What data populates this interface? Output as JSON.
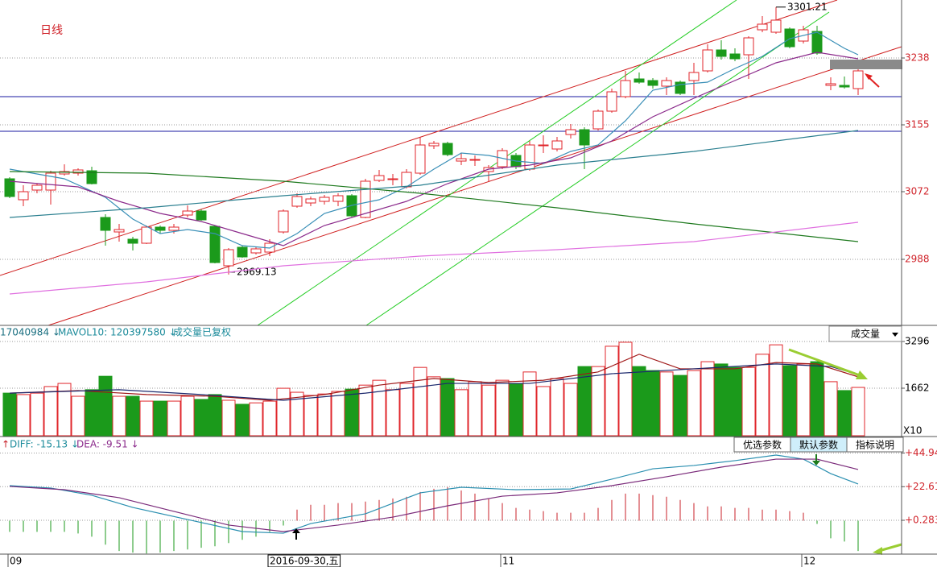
{
  "chart_data": [
    {
      "type": "candlestick",
      "title": "日线",
      "categories": [
        "09",
        null,
        null,
        null,
        null,
        null,
        null,
        null,
        null,
        null,
        null,
        null,
        null,
        null,
        null,
        null,
        null,
        null,
        null,
        "2016-09-30,五",
        null,
        null,
        null,
        null,
        null,
        null,
        null,
        null,
        null,
        null,
        null,
        null,
        null,
        null,
        null,
        null,
        "11",
        null,
        null,
        null,
        null,
        null,
        null,
        null,
        null,
        null,
        null,
        null,
        null,
        null,
        null,
        null,
        null,
        null,
        null,
        null,
        null,
        null,
        "12",
        null,
        null,
        null,
        null
      ],
      "open": [
        3088,
        3062,
        3074,
        3074,
        3094,
        3095,
        3098,
        3040,
        3022,
        3013,
        3008,
        3028,
        3024,
        3043,
        3048,
        3029,
        2980,
        3003,
        2996,
        2997,
        3022,
        3054,
        3058,
        3060,
        3060,
        3067,
        3040,
        3086,
        3088,
        3078,
        3095,
        3129,
        3132,
        3110,
        3112,
        3097,
        3103,
        3117,
        3100,
        3130,
        3125,
        3143,
        3149,
        3150,
        3172,
        3190,
        3212,
        3210,
        3203,
        3208,
        3210,
        3222,
        3248,
        3243,
        3242,
        3273,
        3270,
        3274,
        3259,
        3271,
        3204,
        3204,
        3200
      ],
      "high": [
        3090,
        3080,
        3082,
        3098,
        3106,
        3101,
        3103,
        3044,
        3032,
        3016,
        3030,
        3030,
        3032,
        3055,
        3050,
        3030,
        3002,
        3005,
        3004,
        3013,
        3050,
        3070,
        3066,
        3068,
        3070,
        3069,
        3088,
        3099,
        3094,
        3100,
        3140,
        3135,
        3134,
        3120,
        3117,
        3105,
        3126,
        3120,
        3135,
        3142,
        3140,
        3156,
        3152,
        3174,
        3200,
        3222,
        3220,
        3213,
        3214,
        3210,
        3232,
        3255,
        3260,
        3250,
        3265,
        3290,
        3301.21,
        3276,
        3278,
        3278,
        3214,
        3215,
        3225
      ],
      "low": [
        3064,
        3054,
        3070,
        3056,
        3092,
        3092,
        3081,
        3005,
        3010,
        2999,
        3007,
        3020,
        3020,
        3040,
        3036,
        2983,
        2969.13,
        2990,
        2994,
        2992,
        3020,
        3052,
        3054,
        3056,
        3054,
        3040,
        3039,
        3084,
        3080,
        3076,
        3093,
        3125,
        3116,
        3105,
        3104,
        3084,
        3100,
        3100,
        3098,
        3120,
        3122,
        3138,
        3100,
        3148,
        3170,
        3188,
        3206,
        3200,
        3192,
        3192,
        3192,
        3220,
        3236,
        3234,
        3212,
        3270,
        3268,
        3250,
        3256,
        3242,
        3198,
        3200,
        3192
      ],
      "close": [
        3066,
        3072,
        3080,
        3095,
        3097,
        3099,
        3082,
        3024,
        3025,
        3008,
        3028,
        3024,
        3028,
        3048,
        3037,
        2984,
        3000,
        2991,
        3001,
        3008,
        3048,
        3066,
        3063,
        3065,
        3067,
        3042,
        3085,
        3092,
        3088,
        3096,
        3130,
        3132,
        3118,
        3113,
        3112,
        3102,
        3123,
        3103,
        3130,
        3130,
        3135,
        3149,
        3130,
        3172,
        3196,
        3210,
        3208,
        3204,
        3210,
        3194,
        3220,
        3248,
        3240,
        3237,
        3263,
        3280,
        3285,
        3252,
        3273,
        3244,
        3206,
        3202,
        3222
      ],
      "up_color": "#e0262b",
      "down_color": "#1b9a1b",
      "ylim": [
        2906,
        3310
      ],
      "yticks": [
        2988,
        3072,
        3155,
        3238
      ],
      "grid": true,
      "lines": [
        {
          "color": "#3a8fb7",
          "x": [
            0,
            4,
            7,
            9,
            11,
            13,
            15,
            17,
            19,
            21,
            23,
            25,
            27,
            29,
            31,
            33,
            35,
            37,
            39,
            41,
            43,
            45,
            47,
            49,
            51,
            53,
            55,
            57,
            59,
            61,
            62
          ],
          "values": [
            3100,
            3088,
            3065,
            3038,
            3020,
            3025,
            3020,
            3005,
            3002,
            3020,
            3045,
            3055,
            3062,
            3078,
            3100,
            3120,
            3117,
            3110,
            3107,
            3122,
            3130,
            3160,
            3198,
            3205,
            3208,
            3225,
            3240,
            3262,
            3270,
            3250,
            3242
          ]
        },
        {
          "color": "#8b2a8b",
          "x": [
            0,
            5,
            8,
            11,
            14,
            17,
            20,
            23,
            26,
            29,
            32,
            35,
            38,
            41,
            44,
            47,
            50,
            53,
            56,
            59,
            62
          ],
          "values": [
            3085,
            3078,
            3060,
            3045,
            3035,
            3020,
            3005,
            3030,
            3045,
            3060,
            3082,
            3100,
            3105,
            3114,
            3135,
            3165,
            3188,
            3210,
            3232,
            3245,
            3237
          ]
        },
        {
          "color": "#1f7a1f",
          "x": [
            0,
            10,
            20,
            30,
            40,
            50,
            62
          ],
          "values": [
            3097,
            3095,
            3085,
            3070,
            3052,
            3032,
            3010
          ]
        },
        {
          "color": "#2a7f8f",
          "x": [
            0,
            10,
            20,
            30,
            40,
            50,
            62
          ],
          "values": [
            3040,
            3052,
            3067,
            3080,
            3105,
            3122,
            3148
          ]
        },
        {
          "color": "#e070e0",
          "x": [
            0,
            10,
            20,
            30,
            40,
            50,
            62
          ],
          "values": [
            2945,
            2960,
            2980,
            2992,
            3000,
            3010,
            3034
          ]
        }
      ]
    },
    {
      "type": "bar",
      "header": [
        "17040984 ↓",
        "MAVOL10: 120397580 ↓",
        "成交量已复权"
      ],
      "selector": "成交量",
      "unit": "X10",
      "values": [
        1490,
        1440,
        1490,
        1720,
        1830,
        1380,
        1610,
        2080,
        1380,
        1380,
        1210,
        1210,
        1210,
        1380,
        1270,
        1440,
        1240,
        1100,
        1150,
        1210,
        1660,
        1520,
        1410,
        1460,
        1550,
        1630,
        1770,
        1940,
        1610,
        1830,
        2390,
        2060,
        2000,
        1610,
        1890,
        1770,
        1940,
        1830,
        2230,
        1720,
        2000,
        1830,
        2420,
        2420,
        3130,
        3270,
        2420,
        2280,
        2230,
        2110,
        2280,
        2590,
        2510,
        2390,
        2390,
        2850,
        3180,
        2450,
        2510,
        2590,
        1890,
        1580,
        1690
      ],
      "ylim": [
        0,
        3409
      ],
      "yticks": [
        1662,
        3296
      ],
      "grid": true,
      "lines": [
        {
          "color": "#a01818",
          "x": [
            0,
            5,
            10,
            15,
            19,
            23,
            27,
            31,
            35,
            39,
            43,
            46,
            49,
            53,
            56,
            59,
            62
          ],
          "values": [
            1490,
            1580,
            1440,
            1380,
            1240,
            1440,
            1770,
            2000,
            1860,
            1940,
            2230,
            2850,
            2340,
            2340,
            2560,
            2510,
            2060
          ]
        },
        {
          "color": "#1d2a6e",
          "x": [
            0,
            8,
            14,
            20,
            26,
            32,
            38,
            44,
            50,
            56,
            60,
            62
          ],
          "values": [
            1490,
            1610,
            1440,
            1240,
            1490,
            1830,
            1830,
            2170,
            2340,
            2510,
            2420,
            2140
          ]
        }
      ]
    },
    {
      "type": "macd",
      "header": [
        "↑",
        "DIFF: -15.13 ↓",
        "DEA: -9.51 ↓"
      ],
      "buttons": [
        "优选参数",
        "默认参数",
        "指标说明"
      ],
      "values": [
        -7.4,
        -7.4,
        -7.4,
        -7.4,
        -7.4,
        -8.5,
        -10.6,
        -15.9,
        -20.1,
        -21.2,
        -21.8,
        -21.2,
        -20.1,
        -19.1,
        -18.0,
        -17.0,
        -14.8,
        -12.7,
        -10.6,
        -7.4,
        -3.2,
        7.4,
        10.6,
        10.6,
        11.7,
        11.7,
        12.7,
        13.8,
        14.8,
        15.9,
        19.1,
        21.2,
        22.3,
        20.1,
        18.0,
        14.8,
        11.7,
        8.5,
        7.4,
        6.4,
        5.3,
        5.3,
        5.3,
        8.5,
        13.8,
        18.0,
        18.0,
        17.0,
        15.9,
        13.8,
        11.7,
        9.5,
        9.5,
        8.5,
        8.5,
        7.4,
        7.4,
        6.4,
        5.3,
        -2.1,
        -11.7,
        -13.8,
        -20.1
      ],
      "up_color": "#c8202a",
      "down_color": "#1b9a1b",
      "ylim": [
        -22.19,
        48.97
      ],
      "yticks": [
        {
          "value": 0.283,
          "label": "+0.283"
        },
        {
          "value": 22.61,
          "label": "+22.61"
        },
        {
          "value": 44.94,
          "label": "+44.94"
        }
      ],
      "grid": true,
      "lines": [
        {
          "color": "#2a8fb0",
          "x": [
            0,
            3,
            6,
            9,
            13,
            17,
            20,
            22,
            26,
            30,
            33,
            37,
            41,
            44,
            47,
            50,
            53,
            56,
            58,
            60,
            62
          ],
          "values": [
            23.3,
            21.7,
            16.9,
            8.8,
            0.8,
            -7.2,
            -8.3,
            -1.9,
            4.6,
            18.5,
            22.2,
            20.6,
            21.1,
            27.6,
            34.5,
            36.7,
            39.9,
            43.6,
            40.9,
            31.3,
            24.4
          ]
        },
        {
          "color": "#7a2a7a",
          "x": [
            0,
            4,
            8,
            12,
            16,
            20,
            24,
            28,
            32,
            36,
            40,
            44,
            48,
            52,
            56,
            59,
            62
          ],
          "values": [
            22.8,
            20.6,
            15.3,
            6.2,
            -2.9,
            -7.2,
            -2.9,
            2.4,
            9.9,
            16.3,
            18.5,
            23.3,
            29.2,
            35.6,
            40.9,
            40.9,
            34.0
          ]
        }
      ]
    }
  ]
}
